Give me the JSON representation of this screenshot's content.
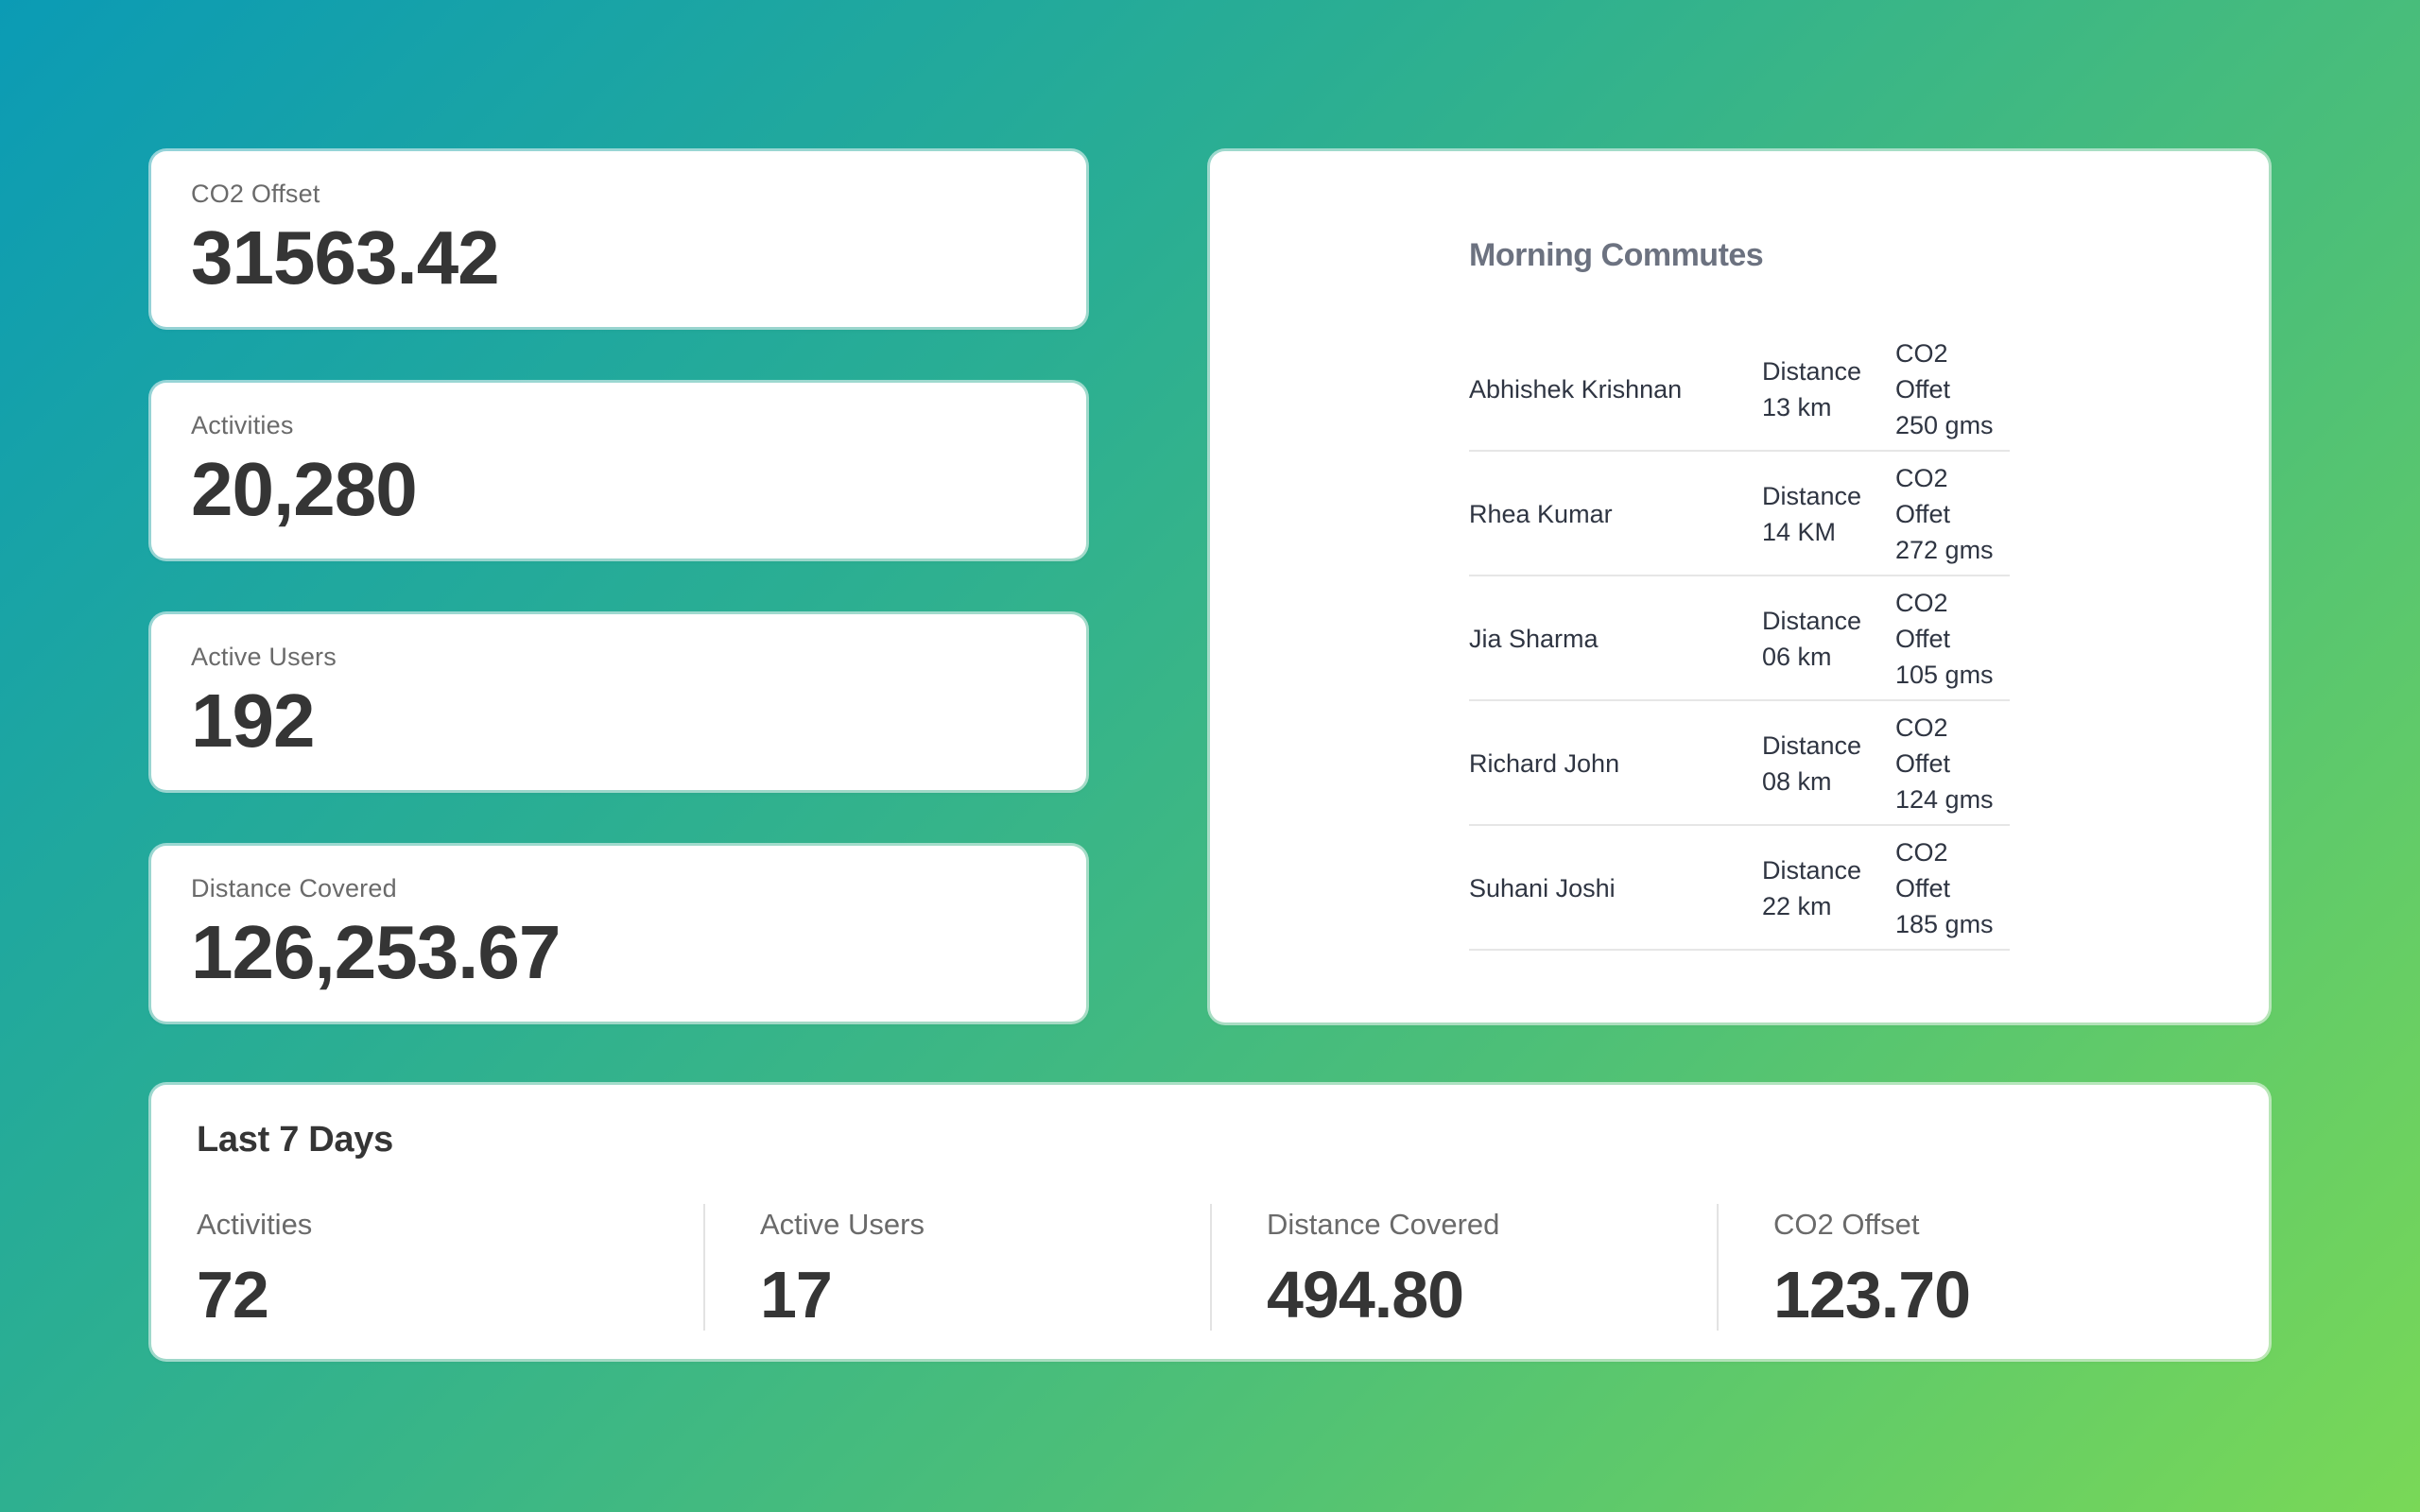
{
  "stats": [
    {
      "label": "CO2 Offset",
      "value": "31563.42"
    },
    {
      "label": "Activities",
      "value": "20,280"
    },
    {
      "label": "Active Users",
      "value": "192"
    },
    {
      "label": "Distance Covered",
      "value": "126,253.67"
    }
  ],
  "commutes": {
    "title": "Morning Commutes",
    "rows": [
      {
        "name": "Abhishek Krishnan",
        "distance_label": "Distance",
        "distance": "13 km",
        "co2_label": "CO2 Offet",
        "co2": "250 gms"
      },
      {
        "name": "Rhea Kumar",
        "distance_label": "Distance",
        "distance": "14 KM",
        "co2_label": "CO2 Offet",
        "co2": "272 gms"
      },
      {
        "name": "Jia Sharma",
        "distance_label": "Distance",
        "distance": "06 km",
        "co2_label": "CO2 Offet",
        "co2": "105 gms"
      },
      {
        "name": "Richard John",
        "distance_label": "Distance",
        "distance": "08 km",
        "co2_label": "CO2 Offet",
        "co2": "124 gms"
      },
      {
        "name": "Suhani Joshi",
        "distance_label": "Distance",
        "distance": "22 km",
        "co2_label": "CO2 Offet",
        "co2": "185 gms"
      }
    ]
  },
  "last7": {
    "title": "Last 7 Days",
    "stats": [
      {
        "label": "Activities",
        "value": "72"
      },
      {
        "label": "Active Users",
        "value": "17"
      },
      {
        "label": "Distance Covered",
        "value": "494.80"
      },
      {
        "label": "CO2 Offset",
        "value": "123.70"
      }
    ]
  },
  "colors": {
    "gradient_start": "#0b9bb5",
    "gradient_end": "#79d857",
    "card": "#ffffff",
    "value_text": "#353535",
    "label_text": "#6a6a6a"
  }
}
